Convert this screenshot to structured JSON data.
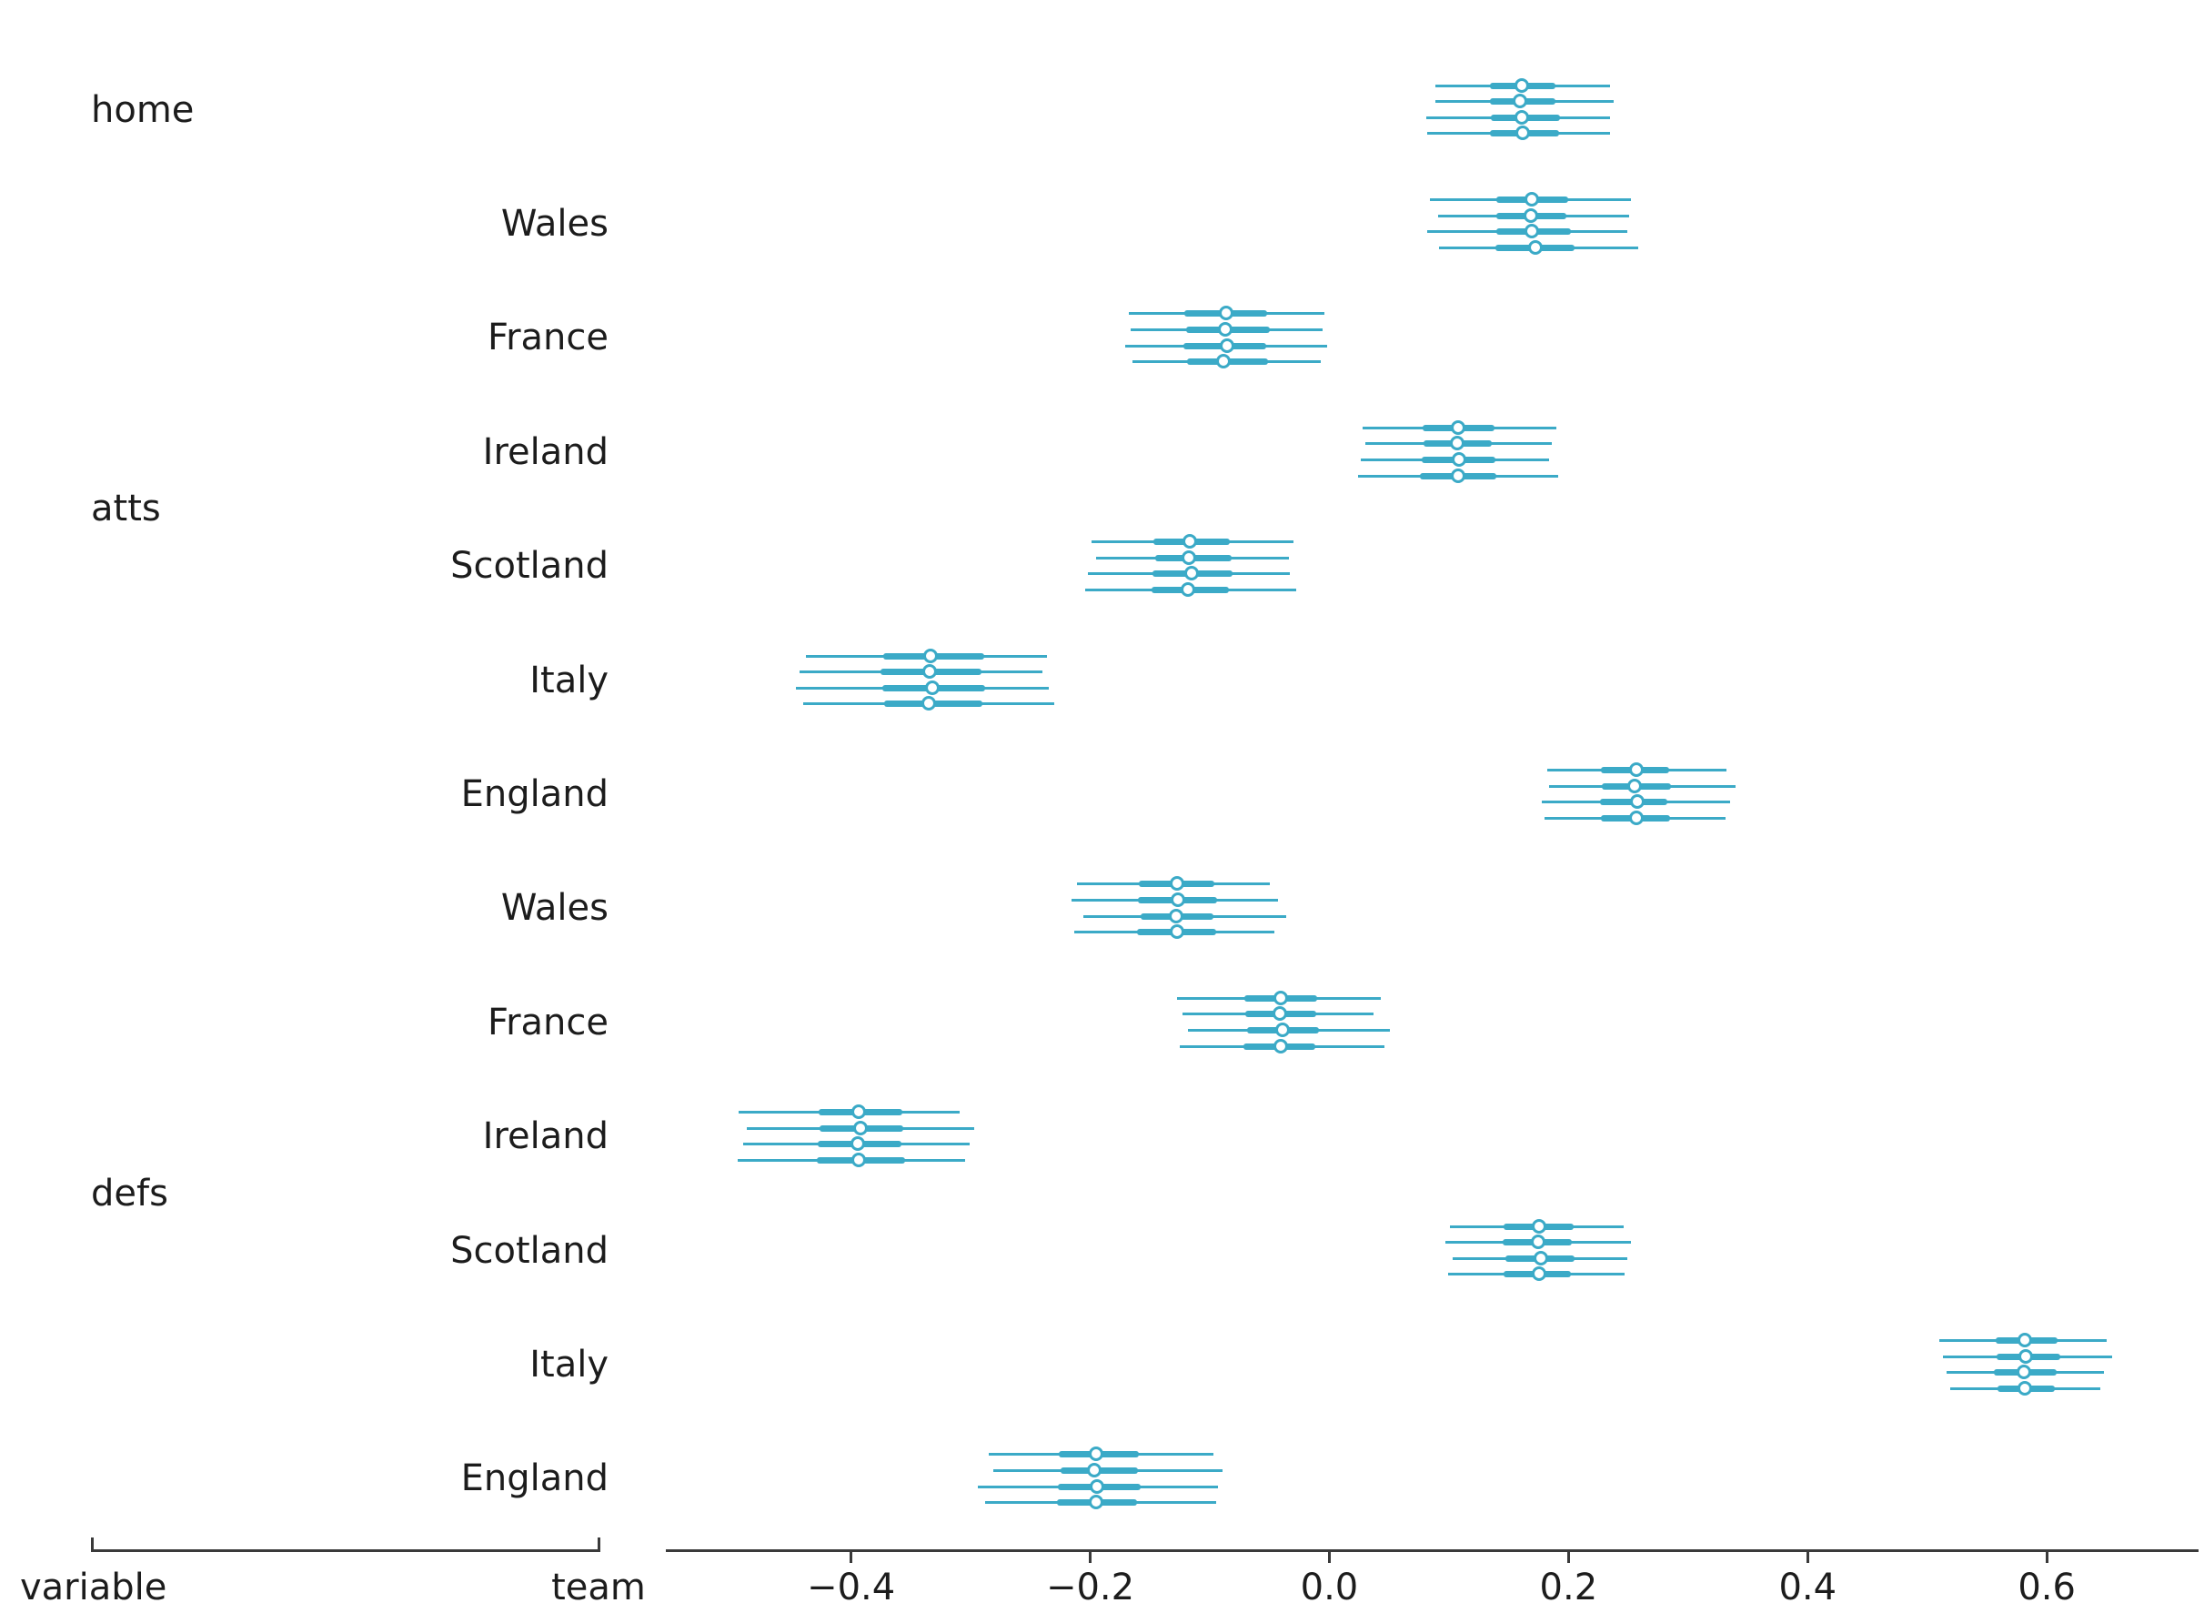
{
  "figure": {
    "background": "#ffffff",
    "accent_color": "#3baac7",
    "axis_color": "#3a3a3a",
    "text_color": "#1c1c1c"
  },
  "chart_data": {
    "type": "forest",
    "orientation": "horizontal",
    "title": "",
    "xlabel_left": "variable",
    "xlabel_right": "team",
    "x_range": [
      -0.5549,
      0.7269
    ],
    "x_ticks": [
      -0.4,
      -0.2,
      0.0,
      0.2,
      0.4,
      0.6
    ],
    "x_tick_labels": [
      "−0.4",
      "−0.2",
      "0.0",
      "0.2",
      "0.4",
      "0.6"
    ],
    "grid": false,
    "legend": false,
    "chains_per_row": 4,
    "marker": "open-circle",
    "variables": [
      {
        "name": "home",
        "row_start": 0,
        "row_end": 0
      },
      {
        "name": "atts",
        "row_start": 1,
        "row_end": 6
      },
      {
        "name": "defs",
        "row_start": 7,
        "row_end": 12
      }
    ],
    "rows": [
      {
        "variable": "home",
        "team": "",
        "chains": [
          {
            "lo": 0.089,
            "q1": 0.134,
            "median": 0.161,
            "q3": 0.189,
            "hi": 0.235
          },
          {
            "lo": 0.089,
            "q1": 0.134,
            "median": 0.16,
            "q3": 0.189,
            "hi": 0.238
          },
          {
            "lo": 0.081,
            "q1": 0.135,
            "median": 0.161,
            "q3": 0.193,
            "hi": 0.235
          },
          {
            "lo": 0.082,
            "q1": 0.134,
            "median": 0.162,
            "q3": 0.192,
            "hi": 0.235
          }
        ]
      },
      {
        "variable": "atts",
        "team": "Wales",
        "chains": [
          {
            "lo": 0.084,
            "q1": 0.14,
            "median": 0.17,
            "q3": 0.2,
            "hi": 0.252
          },
          {
            "lo": 0.091,
            "q1": 0.14,
            "median": 0.169,
            "q3": 0.198,
            "hi": 0.251
          },
          {
            "lo": 0.082,
            "q1": 0.14,
            "median": 0.17,
            "q3": 0.202,
            "hi": 0.249
          },
          {
            "lo": 0.092,
            "q1": 0.139,
            "median": 0.173,
            "q3": 0.205,
            "hi": 0.258
          }
        ]
      },
      {
        "variable": "atts",
        "team": "France",
        "chains": [
          {
            "lo": -0.168,
            "q1": -0.121,
            "median": -0.086,
            "q3": -0.052,
            "hi": -0.004
          },
          {
            "lo": -0.166,
            "q1": -0.12,
            "median": -0.087,
            "q3": -0.05,
            "hi": -0.006
          },
          {
            "lo": -0.171,
            "q1": -0.122,
            "median": -0.085,
            "q3": -0.053,
            "hi": -0.002
          },
          {
            "lo": -0.165,
            "q1": -0.119,
            "median": -0.088,
            "q3": -0.051,
            "hi": -0.007
          }
        ]
      },
      {
        "variable": "atts",
        "team": "Ireland",
        "chains": [
          {
            "lo": 0.028,
            "q1": 0.078,
            "median": 0.108,
            "q3": 0.138,
            "hi": 0.19
          },
          {
            "lo": 0.03,
            "q1": 0.079,
            "median": 0.107,
            "q3": 0.136,
            "hi": 0.186
          },
          {
            "lo": 0.026,
            "q1": 0.077,
            "median": 0.109,
            "q3": 0.139,
            "hi": 0.184
          },
          {
            "lo": 0.024,
            "q1": 0.076,
            "median": 0.108,
            "q3": 0.14,
            "hi": 0.191
          }
        ]
      },
      {
        "variable": "atts",
        "team": "Scotland",
        "chains": [
          {
            "lo": -0.199,
            "q1": -0.147,
            "median": -0.116,
            "q3": -0.083,
            "hi": -0.03
          },
          {
            "lo": -0.195,
            "q1": -0.146,
            "median": -0.117,
            "q3": -0.082,
            "hi": -0.034
          },
          {
            "lo": -0.202,
            "q1": -0.148,
            "median": -0.115,
            "q3": -0.081,
            "hi": -0.033
          },
          {
            "lo": -0.204,
            "q1": -0.149,
            "median": -0.118,
            "q3": -0.084,
            "hi": -0.028
          }
        ]
      },
      {
        "variable": "atts",
        "team": "Italy",
        "chains": [
          {
            "lo": -0.438,
            "q1": -0.373,
            "median": -0.333,
            "q3": -0.289,
            "hi": -0.236
          },
          {
            "lo": -0.443,
            "q1": -0.375,
            "median": -0.334,
            "q3": -0.291,
            "hi": -0.24
          },
          {
            "lo": -0.446,
            "q1": -0.374,
            "median": -0.332,
            "q3": -0.288,
            "hi": -0.235
          },
          {
            "lo": -0.44,
            "q1": -0.372,
            "median": -0.335,
            "q3": -0.29,
            "hi": -0.23
          }
        ]
      },
      {
        "variable": "atts",
        "team": "England",
        "chains": [
          {
            "lo": 0.182,
            "q1": 0.227,
            "median": 0.257,
            "q3": 0.284,
            "hi": 0.332
          },
          {
            "lo": 0.184,
            "q1": 0.228,
            "median": 0.256,
            "q3": 0.286,
            "hi": 0.34
          },
          {
            "lo": 0.178,
            "q1": 0.226,
            "median": 0.258,
            "q3": 0.283,
            "hi": 0.335
          },
          {
            "lo": 0.18,
            "q1": 0.227,
            "median": 0.257,
            "q3": 0.285,
            "hi": 0.331
          }
        ]
      },
      {
        "variable": "defs",
        "team": "Wales",
        "chains": [
          {
            "lo": -0.211,
            "q1": -0.159,
            "median": -0.127,
            "q3": -0.096,
            "hi": -0.05
          },
          {
            "lo": -0.216,
            "q1": -0.16,
            "median": -0.126,
            "q3": -0.094,
            "hi": -0.043
          },
          {
            "lo": -0.206,
            "q1": -0.158,
            "median": -0.128,
            "q3": -0.097,
            "hi": -0.036
          },
          {
            "lo": -0.213,
            "q1": -0.161,
            "median": -0.127,
            "q3": -0.095,
            "hi": -0.046
          }
        ]
      },
      {
        "variable": "defs",
        "team": "France",
        "chains": [
          {
            "lo": -0.127,
            "q1": -0.071,
            "median": -0.04,
            "q3": -0.01,
            "hi": 0.043
          },
          {
            "lo": -0.123,
            "q1": -0.07,
            "median": -0.041,
            "q3": -0.011,
            "hi": 0.037
          },
          {
            "lo": -0.118,
            "q1": -0.069,
            "median": -0.039,
            "q3": -0.009,
            "hi": 0.051
          },
          {
            "lo": -0.125,
            "q1": -0.072,
            "median": -0.04,
            "q3": -0.012,
            "hi": 0.046
          }
        ]
      },
      {
        "variable": "defs",
        "team": "Ireland",
        "chains": [
          {
            "lo": -0.494,
            "q1": -0.427,
            "median": -0.393,
            "q3": -0.357,
            "hi": -0.309
          },
          {
            "lo": -0.487,
            "q1": -0.426,
            "median": -0.392,
            "q3": -0.356,
            "hi": -0.297
          },
          {
            "lo": -0.49,
            "q1": -0.428,
            "median": -0.394,
            "q3": -0.358,
            "hi": -0.301
          },
          {
            "lo": -0.495,
            "q1": -0.429,
            "median": -0.393,
            "q3": -0.355,
            "hi": -0.305
          }
        ]
      },
      {
        "variable": "defs",
        "team": "Scotland",
        "chains": [
          {
            "lo": 0.101,
            "q1": 0.146,
            "median": 0.176,
            "q3": 0.204,
            "hi": 0.246
          },
          {
            "lo": 0.097,
            "q1": 0.145,
            "median": 0.175,
            "q3": 0.203,
            "hi": 0.252
          },
          {
            "lo": 0.103,
            "q1": 0.147,
            "median": 0.177,
            "q3": 0.205,
            "hi": 0.249
          },
          {
            "lo": 0.099,
            "q1": 0.146,
            "median": 0.176,
            "q3": 0.202,
            "hi": 0.247
          }
        ]
      },
      {
        "variable": "defs",
        "team": "Italy",
        "chains": [
          {
            "lo": 0.51,
            "q1": 0.557,
            "median": 0.582,
            "q3": 0.609,
            "hi": 0.65
          },
          {
            "lo": 0.513,
            "q1": 0.558,
            "median": 0.583,
            "q3": 0.611,
            "hi": 0.655
          },
          {
            "lo": 0.516,
            "q1": 0.556,
            "median": 0.581,
            "q3": 0.608,
            "hi": 0.648
          },
          {
            "lo": 0.519,
            "q1": 0.559,
            "median": 0.582,
            "q3": 0.607,
            "hi": 0.645
          }
        ]
      },
      {
        "variable": "defs",
        "team": "England",
        "chains": [
          {
            "lo": -0.285,
            "q1": -0.226,
            "median": -0.195,
            "q3": -0.159,
            "hi": -0.097
          },
          {
            "lo": -0.281,
            "q1": -0.225,
            "median": -0.196,
            "q3": -0.16,
            "hi": -0.089
          },
          {
            "lo": -0.294,
            "q1": -0.227,
            "median": -0.194,
            "q3": -0.158,
            "hi": -0.093
          },
          {
            "lo": -0.288,
            "q1": -0.228,
            "median": -0.195,
            "q3": -0.161,
            "hi": -0.095
          }
        ]
      }
    ]
  }
}
